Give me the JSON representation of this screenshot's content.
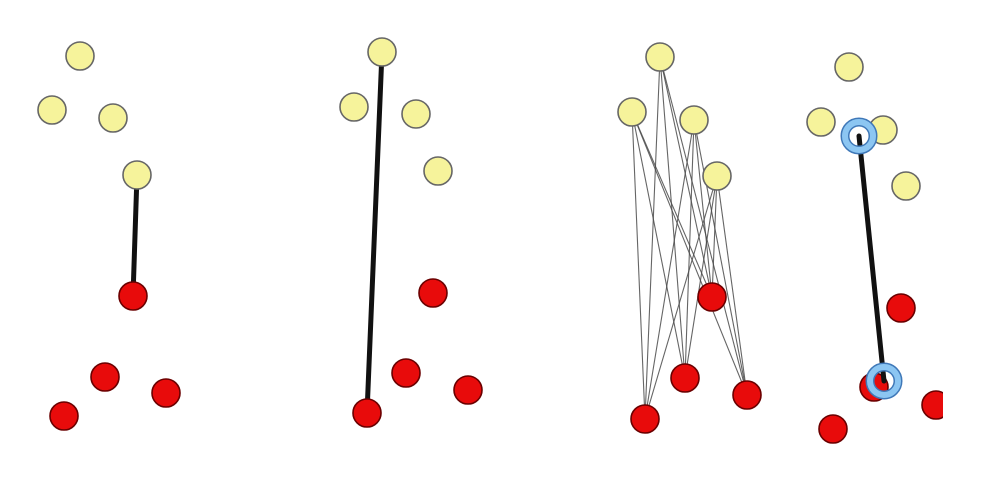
{
  "colors": {
    "background": "#ffffff",
    "source_node_fill": "#f6f39b",
    "source_node_stroke": "#666666",
    "target_node_fill": "#e80b0b",
    "target_node_stroke": "#6a0000",
    "bold_edge": "#111111",
    "thin_edge": "#4b4b4b",
    "highlight_ring": "#8cc6f2",
    "highlight_ring_stroke": "#3f78b8"
  },
  "icons": {
    "source_node": "yellow-node-icon",
    "target_node": "red-node-icon",
    "highlight_ring": "blue-ring-icon"
  },
  "panels": [
    {
      "name": "panel-1",
      "mode": "single-edge"
    },
    {
      "name": "panel-2",
      "mode": "single-long-edge"
    },
    {
      "name": "panel-3",
      "mode": "complete-bipartite-edges"
    },
    {
      "name": "panel-4",
      "mode": "highlighted-edge"
    }
  ]
}
